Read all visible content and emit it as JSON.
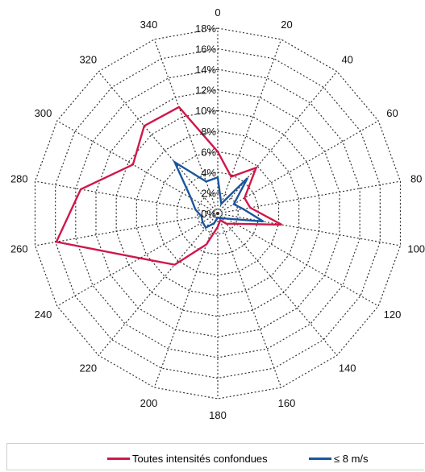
{
  "chart_data": {
    "type": "radar",
    "title": "",
    "angles": [
      0,
      20,
      40,
      60,
      80,
      100,
      120,
      140,
      160,
      180,
      200,
      220,
      240,
      260,
      280,
      300,
      320,
      340
    ],
    "angle_labels": [
      "0",
      "20",
      "40",
      "60",
      "80",
      "100",
      "120",
      "140",
      "160",
      "180",
      "200",
      "220",
      "240",
      "260",
      "280",
      "300",
      "320",
      "340"
    ],
    "radial_ticks": [
      0,
      2,
      4,
      6,
      8,
      10,
      12,
      14,
      16,
      18
    ],
    "radial_tick_labels": [
      "0%",
      "2%",
      "4%",
      "6%",
      "8%",
      "10%",
      "12%",
      "14%",
      "16%",
      "18%"
    ],
    "rlim": [
      0,
      18
    ],
    "grid": true,
    "grid_style": "dotted",
    "legend_position": "bottom",
    "series": [
      {
        "name": "Toutes intensités confondues",
        "color": "#d0174a",
        "values": [
          6.0,
          3.8,
          5.8,
          3.0,
          3.2,
          6.3,
          2.0,
          1.3,
          0.7,
          1.3,
          3.2,
          6.5,
          8.7,
          15.9,
          13.5,
          9.5,
          11.1,
          11.0
        ]
      },
      {
        "name": "≤ 8 m/s",
        "color": "#1a55a0",
        "values": [
          3.5,
          1.0,
          4.5,
          1.8,
          2.5,
          4.5,
          1.0,
          0.6,
          0.5,
          0.4,
          1.0,
          1.8,
          1.7,
          1.6,
          2.2,
          3.0,
          6.5,
          3.3
        ]
      }
    ]
  }
}
